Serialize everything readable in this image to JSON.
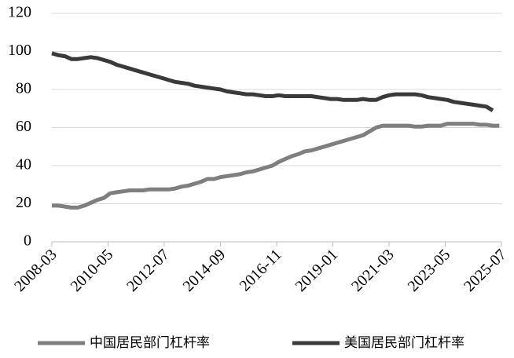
{
  "chart_data": {
    "type": "line",
    "x": [
      "2008-03",
      "2008-06",
      "2008-09",
      "2008-12",
      "2009-03",
      "2009-06",
      "2009-09",
      "2009-12",
      "2010-03",
      "2010-06",
      "2010-09",
      "2010-12",
      "2011-03",
      "2011-06",
      "2011-09",
      "2011-12",
      "2012-03",
      "2012-06",
      "2012-09",
      "2012-12",
      "2013-03",
      "2013-06",
      "2013-09",
      "2013-12",
      "2014-03",
      "2014-06",
      "2014-09",
      "2014-12",
      "2015-03",
      "2015-06",
      "2015-09",
      "2015-12",
      "2016-03",
      "2016-06",
      "2016-09",
      "2016-12",
      "2017-03",
      "2017-06",
      "2017-09",
      "2017-12",
      "2018-03",
      "2018-06",
      "2018-09",
      "2018-12",
      "2019-03",
      "2019-06",
      "2019-09",
      "2019-12",
      "2020-03",
      "2020-06",
      "2020-09",
      "2020-12",
      "2021-03",
      "2021-06",
      "2021-09",
      "2021-12",
      "2022-03",
      "2022-06",
      "2022-09",
      "2022-12",
      "2023-03",
      "2023-06",
      "2023-09",
      "2023-12",
      "2024-03",
      "2024-06",
      "2024-09",
      "2024-12",
      "2025-03",
      "2025-06"
    ],
    "series": [
      {
        "name": "中国居民部门杠杆率",
        "color": "#7f7f7f",
        "values": [
          19,
          19,
          18.5,
          18,
          18,
          19,
          20.5,
          22,
          23,
          25.5,
          26,
          26.5,
          27,
          27,
          27,
          27.5,
          27.5,
          27.5,
          27.5,
          28,
          29,
          29.5,
          30.5,
          31.5,
          33,
          33,
          34,
          34.5,
          35,
          35.5,
          36.5,
          37,
          38,
          39,
          40,
          42,
          43.5,
          45,
          46,
          47.5,
          48,
          49,
          50,
          51,
          52,
          53,
          54,
          55,
          56,
          58,
          60,
          61,
          61,
          61,
          61,
          61,
          60.5,
          60.5,
          61,
          61,
          61,
          62,
          62,
          62,
          62,
          62,
          61.5,
          61.5,
          61,
          61
        ]
      },
      {
        "name": "美国居民部门杠杆率",
        "color": "#3a3a3a",
        "values": [
          99,
          98,
          97.5,
          96,
          96,
          96.5,
          97,
          96.5,
          95.5,
          94.5,
          93,
          92,
          91,
          90,
          89,
          88,
          87,
          86,
          85,
          84,
          83.5,
          83,
          82,
          81.5,
          81,
          80.5,
          80,
          79,
          78.5,
          78,
          77.5,
          77.5,
          77,
          76.5,
          76.5,
          77,
          76.5,
          76.5,
          76.5,
          76.5,
          76.5,
          76,
          75.5,
          75,
          75,
          74.5,
          74.5,
          74.5,
          75,
          74.5,
          74.5,
          76,
          77,
          77.5,
          77.5,
          77.5,
          77.5,
          77,
          76,
          75.5,
          75,
          74.5,
          73.5,
          73,
          72.5,
          72,
          71.5,
          71,
          69,
          null
        ]
      }
    ],
    "xlim": [
      "2008-03",
      "2025-07"
    ],
    "xticks": [
      "2008-03",
      "2010-05",
      "2012-07",
      "2014-09",
      "2016-11",
      "2019-01",
      "2021-03",
      "2023-05",
      "2025-07"
    ],
    "ylim": [
      0,
      120
    ],
    "yticks": [
      0,
      20,
      40,
      60,
      80,
      100,
      120
    ],
    "grid": true,
    "legend": "bottom"
  }
}
